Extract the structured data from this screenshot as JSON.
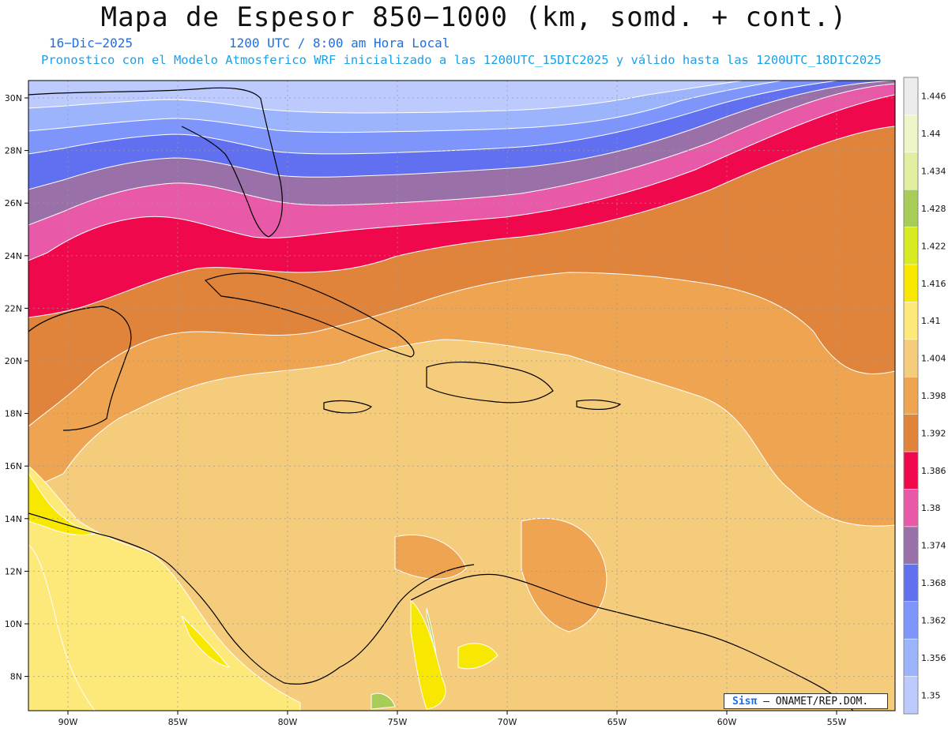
{
  "header": {
    "title": "Mapa de Espesor 850−1000 (km, somd. + cont.)",
    "date": "16−Dic−2025",
    "time": "1200 UTC / 8:00 am Hora Local",
    "forecast": "Pronostico con el Modelo Atmosferico WRF inicializado a las 1200UTC_15DIC2025 y válido hasta las  1200UTC_18DIC2025"
  },
  "axes": {
    "lat_labels": [
      "30N",
      "28N",
      "26N",
      "24N",
      "22N",
      "20N",
      "18N",
      "16N",
      "14N",
      "12N",
      "10N",
      "8N"
    ],
    "lon_labels": [
      "90W",
      "85W",
      "80W",
      "75W",
      "70W",
      "65W",
      "60W",
      "55W"
    ]
  },
  "colorbar": {
    "labels": [
      "1.446",
      "1.44",
      "1.434",
      "1.428",
      "1.422",
      "1.416",
      "1.41",
      "1.404",
      "1.398",
      "1.392",
      "1.386",
      "1.38",
      "1.374",
      "1.368",
      "1.362",
      "1.356",
      "1.35"
    ],
    "colors": [
      "#ececec",
      "#eef5c8",
      "#e0f0a0",
      "#a8cc58",
      "#d8ea20",
      "#f8e800",
      "#fde87a",
      "#f5cc7c",
      "#eea450",
      "#e0843c",
      "#f0084c",
      "#e85aa8",
      "#9a70a8",
      "#6070f0",
      "#7e96fc",
      "#9cb4fc",
      "#bccafd"
    ]
  },
  "credit": {
    "logo": "Sisπ",
    "text": "– ONAMET/REP.DOM."
  }
}
